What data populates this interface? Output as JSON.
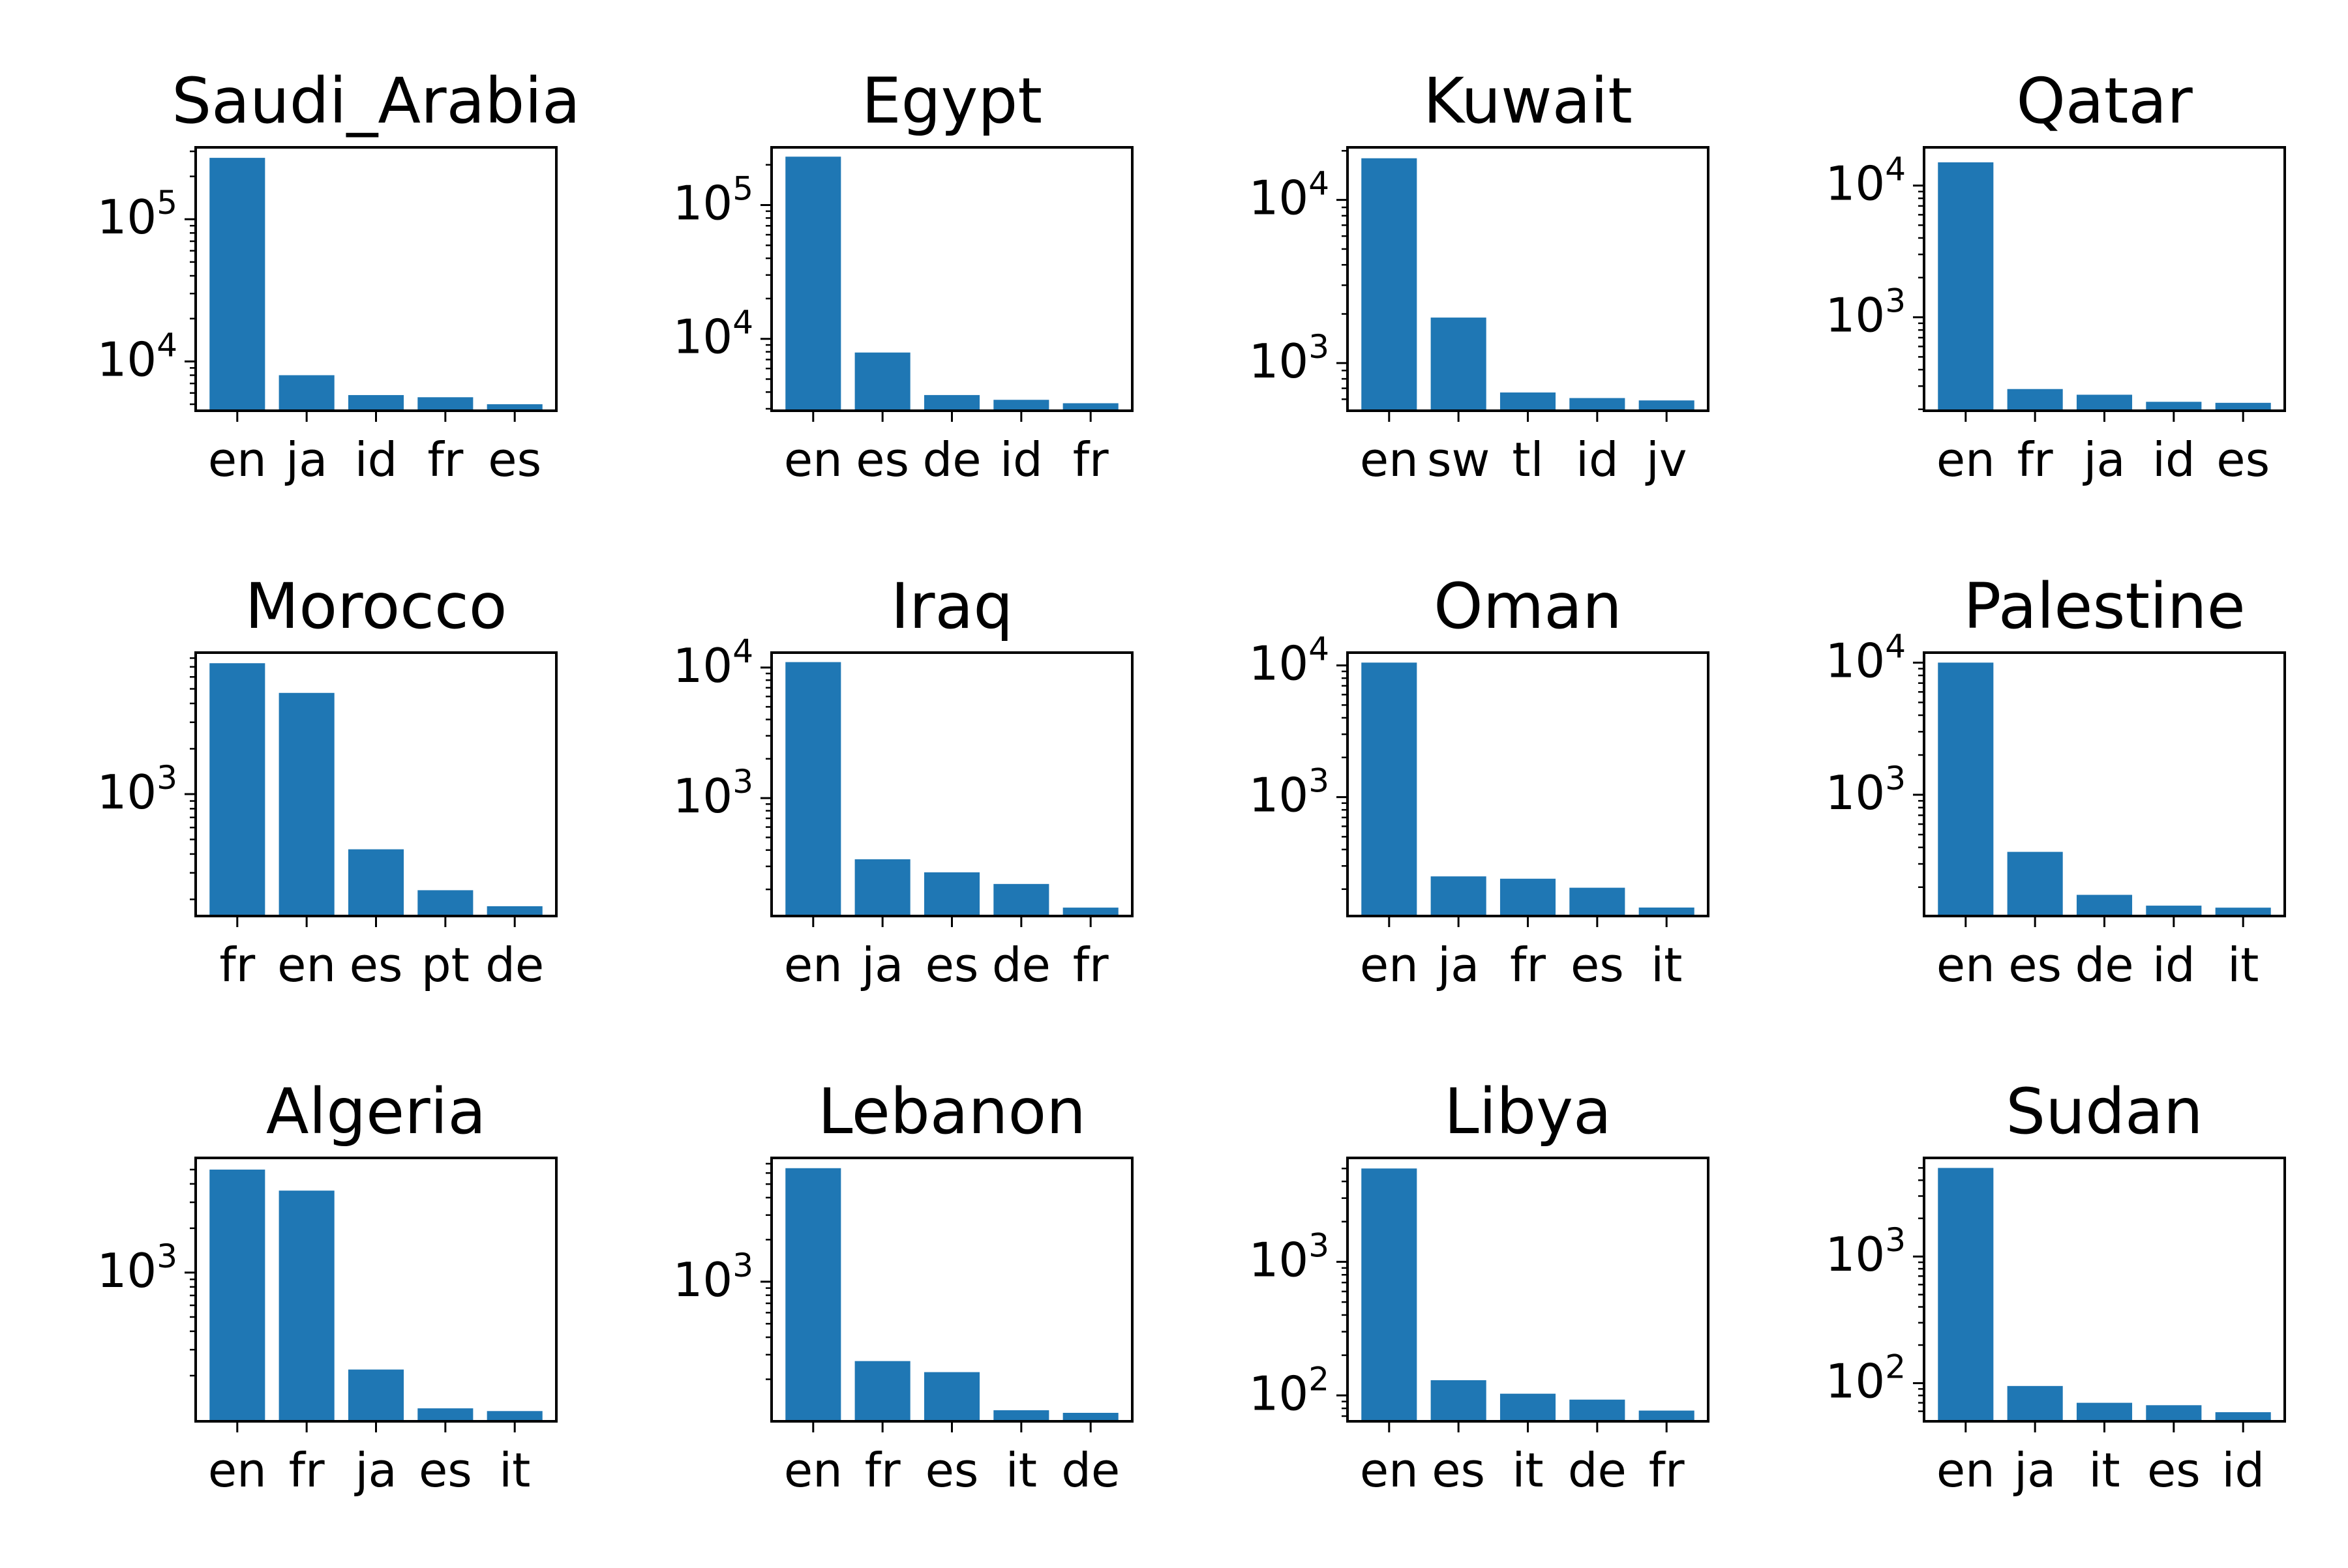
{
  "chart_data": [
    {
      "type": "bar",
      "title": "Saudi_Arabia",
      "log_scale": true,
      "categories": [
        "en",
        "ja",
        "id",
        "fr",
        "es"
      ],
      "values": [
        270000,
        8000,
        5800,
        5600,
        5000
      ],
      "ylim": [
        4500,
        320000
      ],
      "yticks": [
        {
          "value": 10000,
          "base": "10",
          "exp": "4"
        },
        {
          "value": 100000,
          "base": "10",
          "exp": "5"
        }
      ]
    },
    {
      "type": "bar",
      "title": "Egypt",
      "log_scale": true,
      "categories": [
        "en",
        "es",
        "de",
        "id",
        "fr"
      ],
      "values": [
        230000,
        7900,
        3800,
        3500,
        3300
      ],
      "ylim": [
        2900,
        270000
      ],
      "yticks": [
        {
          "value": 10000,
          "base": "10",
          "exp": "4"
        },
        {
          "value": 100000,
          "base": "10",
          "exp": "5"
        }
      ]
    },
    {
      "type": "bar",
      "title": "Kuwait",
      "log_scale": true,
      "categories": [
        "en",
        "sw",
        "tl",
        "id",
        "jv"
      ],
      "values": [
        18000,
        1900,
        660,
        610,
        590
      ],
      "ylim": [
        510,
        21000
      ],
      "yticks": [
        {
          "value": 1000,
          "base": "10",
          "exp": "3"
        },
        {
          "value": 10000,
          "base": "10",
          "exp": "4"
        }
      ]
    },
    {
      "type": "bar",
      "title": "Qatar",
      "log_scale": true,
      "categories": [
        "en",
        "fr",
        "ja",
        "id",
        "es"
      ],
      "values": [
        15000,
        285,
        258,
        228,
        224
      ],
      "ylim": [
        195,
        19500
      ],
      "yticks": [
        {
          "value": 1000,
          "base": "10",
          "exp": "3"
        },
        {
          "value": 10000,
          "base": "10",
          "exp": "4"
        }
      ]
    },
    {
      "type": "bar",
      "title": "Morocco",
      "log_scale": true,
      "categories": [
        "fr",
        "en",
        "es",
        "pt",
        "de"
      ],
      "values": [
        7400,
        4700,
        430,
        230,
        180
      ],
      "ylim": [
        155,
        8700
      ],
      "yticks": [
        {
          "value": 1000,
          "base": "10",
          "exp": "3"
        }
      ]
    },
    {
      "type": "bar",
      "title": "Iraq",
      "log_scale": true,
      "categories": [
        "en",
        "ja",
        "es",
        "de",
        "fr"
      ],
      "values": [
        11000,
        340,
        270,
        220,
        145
      ],
      "ylim": [
        125,
        13000
      ],
      "yticks": [
        {
          "value": 1000,
          "base": "10",
          "exp": "3"
        },
        {
          "value": 10000,
          "base": "10",
          "exp": "4"
        }
      ]
    },
    {
      "type": "bar",
      "title": "Oman",
      "log_scale": true,
      "categories": [
        "en",
        "ja",
        "fr",
        "es",
        "it"
      ],
      "values": [
        10500,
        250,
        240,
        205,
        145
      ],
      "ylim": [
        125,
        12500
      ],
      "yticks": [
        {
          "value": 1000,
          "base": "10",
          "exp": "3"
        },
        {
          "value": 10000,
          "base": "10",
          "exp": "4"
        }
      ]
    },
    {
      "type": "bar",
      "title": "Palestine",
      "log_scale": true,
      "categories": [
        "en",
        "es",
        "de",
        "id",
        "it"
      ],
      "values": [
        10000,
        370,
        175,
        145,
        140
      ],
      "ylim": [
        121,
        11900
      ],
      "yticks": [
        {
          "value": 1000,
          "base": "10",
          "exp": "3"
        },
        {
          "value": 10000,
          "base": "10",
          "exp": "4"
        }
      ]
    },
    {
      "type": "bar",
      "title": "Algeria",
      "log_scale": true,
      "categories": [
        "en",
        "fr",
        "ja",
        "es",
        "it"
      ],
      "values": [
        5000,
        3600,
        220,
        120,
        115
      ],
      "ylim": [
        98,
        6000
      ],
      "yticks": [
        {
          "value": 1000,
          "base": "10",
          "exp": "3"
        }
      ]
    },
    {
      "type": "bar",
      "title": "Lebanon",
      "log_scale": true,
      "categories": [
        "en",
        "fr",
        "es",
        "it",
        "de"
      ],
      "values": [
        6500,
        270,
        225,
        120,
        115
      ],
      "ylim": [
        100,
        7700
      ],
      "yticks": [
        {
          "value": 1000,
          "base": "10",
          "exp": "3"
        }
      ]
    },
    {
      "type": "bar",
      "title": "Libya",
      "log_scale": true,
      "categories": [
        "en",
        "es",
        "it",
        "de",
        "fr"
      ],
      "values": [
        5000,
        130,
        103,
        93,
        77
      ],
      "ylim": [
        64,
        6000
      ],
      "yticks": [
        {
          "value": 100,
          "base": "10",
          "exp": "2"
        },
        {
          "value": 1000,
          "base": "10",
          "exp": "3"
        }
      ]
    },
    {
      "type": "bar",
      "title": "Sudan",
      "log_scale": true,
      "categories": [
        "en",
        "ja",
        "it",
        "es",
        "id"
      ],
      "values": [
        5000,
        95,
        70,
        67,
        59
      ],
      "ylim": [
        50,
        6000
      ],
      "yticks": [
        {
          "value": 100,
          "base": "10",
          "exp": "2"
        },
        {
          "value": 1000,
          "base": "10",
          "exp": "3"
        }
      ]
    }
  ],
  "colors": {
    "bar": "#1f77b4",
    "axis": "#000000"
  }
}
